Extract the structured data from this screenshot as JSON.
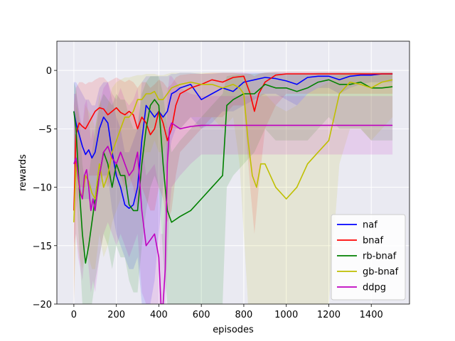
{
  "chart_data": {
    "type": "line",
    "title": "",
    "xlabel": "episodes",
    "ylabel": "rewards",
    "xlim": [
      -80,
      1580
    ],
    "ylim": [
      -20,
      2.5
    ],
    "xticks": [
      0,
      200,
      400,
      600,
      800,
      1000,
      1200,
      1400
    ],
    "yticks": [
      0,
      -5,
      -10,
      -15,
      -20
    ],
    "xtick_labels": [
      "0",
      "200",
      "400",
      "600",
      "800",
      "1000",
      "1200",
      "1400"
    ],
    "ytick_labels": [
      "0",
      "−5",
      "−10",
      "−15",
      "−20"
    ],
    "grid": true,
    "background": "#eaeaf2",
    "legend_position": "lower-right",
    "series": [
      {
        "name": "naf",
        "color": "#0000ff",
        "x": [
          0,
          10,
          25,
          40,
          55,
          70,
          85,
          100,
          120,
          140,
          160,
          180,
          200,
          220,
          240,
          260,
          280,
          300,
          320,
          340,
          360,
          380,
          400,
          420,
          440,
          460,
          480,
          500,
          550,
          600,
          650,
          700,
          750,
          800,
          850,
          900,
          950,
          1000,
          1050,
          1100,
          1150,
          1200,
          1250,
          1300,
          1350,
          1400,
          1450,
          1500
        ],
        "y": [
          -3.5,
          -4.5,
          -5.5,
          -6.5,
          -7.2,
          -6.8,
          -7.5,
          -7,
          -5,
          -4,
          -4.5,
          -7,
          -9,
          -10,
          -11.5,
          -11.8,
          -11.5,
          -10,
          -6,
          -3,
          -3.5,
          -4,
          -3.5,
          -4,
          -3.5,
          -2,
          -1.8,
          -1.5,
          -1.2,
          -2.5,
          -2,
          -1.5,
          -1.8,
          -1,
          -0.8,
          -0.6,
          -0.7,
          -0.9,
          -1.2,
          -0.6,
          -0.5,
          -0.5,
          -0.8,
          -0.5,
          -0.4,
          -0.4,
          -0.3,
          -0.3
        ],
        "band_lower": [
          -8,
          -9,
          -10,
          -11,
          -11,
          -11,
          -12,
          -12,
          -10,
          -9,
          -9,
          -12,
          -14,
          -15,
          -16,
          -17,
          -17,
          -16,
          -20,
          -20,
          -20,
          -18,
          -14,
          -10,
          -8,
          -6,
          -5,
          -5,
          -4,
          -5,
          -4.5,
          -3.5,
          -3.5,
          -3,
          -2.5,
          -2,
          -2,
          -2.5,
          -3,
          -2,
          -1.5,
          -1.5,
          -2,
          -1.5,
          -1.2,
          -1,
          -1,
          -1
        ],
        "band_upper": [
          -1,
          -1,
          -1.5,
          -2,
          -2.5,
          -2.5,
          -3,
          -3,
          -1.5,
          -1,
          -1,
          -2.5,
          -4,
          -5,
          -7,
          -7,
          -6,
          -5,
          -1,
          -0.5,
          -0.5,
          -0.5,
          -0.5,
          -0.5,
          -0.5,
          -0.3,
          -0.3,
          -0.2,
          -0.2,
          -0.3,
          -0.3,
          -0.2,
          -0.2,
          -0.2,
          -0.2,
          -0.2,
          -0.2,
          -0.2,
          -0.2,
          -0.2,
          -0.2,
          -0.2,
          -0.2,
          -0.2,
          -0.2,
          -0.2,
          -0.2,
          -0.2
        ]
      },
      {
        "name": "bnaf",
        "color": "#ff0000",
        "x": [
          0,
          10,
          25,
          40,
          55,
          70,
          85,
          100,
          120,
          140,
          160,
          180,
          200,
          220,
          240,
          260,
          280,
          300,
          320,
          340,
          360,
          380,
          400,
          420,
          440,
          460,
          480,
          500,
          550,
          600,
          650,
          700,
          750,
          800,
          830,
          850,
          870,
          900,
          950,
          1000,
          1050,
          1100,
          1150,
          1200,
          1250,
          1300,
          1350,
          1400,
          1450,
          1500
        ],
        "y": [
          -12,
          -5.5,
          -4.5,
          -4.8,
          -5,
          -4.5,
          -4,
          -3.5,
          -3.2,
          -3.3,
          -3.8,
          -3.5,
          -3.2,
          -3.6,
          -3.8,
          -3.5,
          -3.8,
          -5,
          -4,
          -4.5,
          -5.5,
          -5,
          -3.5,
          -4.5,
          -6,
          -5,
          -3,
          -2,
          -1.5,
          -1.2,
          -0.8,
          -1,
          -0.6,
          -0.5,
          -2,
          -3.5,
          -2,
          -1,
          -0.4,
          -0.3,
          -0.3,
          -0.3,
          -0.3,
          -0.3,
          -0.3,
          -0.3,
          -0.3,
          -0.3,
          -0.3,
          -0.3
        ],
        "band_lower": [
          -20,
          -12,
          -10,
          -10,
          -10,
          -9,
          -9,
          -9,
          -9,
          -9,
          -10,
          -9,
          -9,
          -9,
          -10,
          -9,
          -10,
          -12,
          -10,
          -11,
          -12,
          -12,
          -10,
          -11,
          -13,
          -12,
          -9,
          -7,
          -6,
          -5,
          -4,
          -4,
          -3,
          -3,
          -10,
          -14,
          -10,
          -5,
          -3,
          -2,
          -2,
          -2,
          -2,
          -2,
          -2,
          -2,
          -2,
          -2,
          -2,
          -2
        ],
        "band_upper": [
          -3,
          -1.5,
          -1,
          -1,
          -1.2,
          -1,
          -1,
          -0.8,
          -0.6,
          -0.6,
          -1,
          -0.8,
          -0.6,
          -0.8,
          -1,
          -0.8,
          -1,
          -1.5,
          -1,
          -1,
          -1.5,
          -1.2,
          -0.8,
          -1,
          -1.5,
          -1.2,
          -0.6,
          -0.4,
          -0.3,
          -0.3,
          -0.2,
          -0.2,
          -0.2,
          -0.2,
          -0.3,
          -0.5,
          -0.3,
          -0.2,
          -0.1,
          -0.1,
          -0.1,
          -0.1,
          -0.1,
          -0.1,
          -0.1,
          -0.1,
          -0.1,
          -0.1,
          -0.1,
          -0.1
        ]
      },
      {
        "name": "rb-bnaf",
        "color": "#008000",
        "x": [
          0,
          10,
          25,
          40,
          55,
          70,
          85,
          100,
          120,
          140,
          160,
          180,
          200,
          220,
          240,
          260,
          280,
          300,
          320,
          340,
          360,
          380,
          400,
          420,
          440,
          460,
          500,
          550,
          600,
          650,
          700,
          720,
          750,
          800,
          850,
          900,
          950,
          1000,
          1050,
          1100,
          1150,
          1200,
          1250,
          1300,
          1350,
          1400,
          1450,
          1500
        ],
        "y": [
          -3.5,
          -5,
          -10,
          -14,
          -16.5,
          -15,
          -13,
          -11,
          -9,
          -7,
          -8,
          -10,
          -8,
          -9,
          -9,
          -11.5,
          -12,
          -12,
          -8,
          -5,
          -3,
          -2.5,
          -3,
          -8,
          -12,
          -13,
          -12.5,
          -12,
          -11,
          -10,
          -9,
          -3,
          -2.5,
          -2,
          -2,
          -1.2,
          -1.5,
          -1.5,
          -1.8,
          -1.5,
          -1,
          -0.8,
          -1.2,
          -1.2,
          -1,
          -1.5,
          -1.5,
          -1.4
        ],
        "band_lower": [
          -8,
          -10,
          -15,
          -20,
          -20,
          -20,
          -20,
          -18,
          -16,
          -14,
          -15,
          -17,
          -15,
          -16,
          -16,
          -18,
          -19,
          -19,
          -15,
          -12,
          -10,
          -9,
          -10,
          -16,
          -20,
          -20,
          -20,
          -20,
          -20,
          -20,
          -20,
          -10,
          -9,
          -8,
          -7,
          -5,
          -6,
          -6,
          -6,
          -6,
          -5,
          -4,
          -5,
          -5,
          -5,
          -6,
          -6,
          -6
        ],
        "band_upper": [
          -1,
          -1.5,
          -4,
          -8,
          -10,
          -9,
          -7,
          -5,
          -3,
          -2,
          -2.5,
          -3,
          -2,
          -2.5,
          -2.5,
          -4,
          -5,
          -5,
          -2,
          -1,
          -0.5,
          -0.5,
          -0.5,
          -2,
          -5,
          -7,
          -6,
          -5,
          -4,
          -3,
          -2,
          -0.5,
          -0.4,
          -0.3,
          -0.3,
          -0.2,
          -0.2,
          -0.3,
          -0.3,
          -0.3,
          -0.2,
          -0.2,
          -0.2,
          -0.2,
          -0.2,
          -0.2,
          -0.2,
          -0.2
        ]
      },
      {
        "name": "gb-bnaf",
        "color": "#bfbf00",
        "x": [
          0,
          10,
          25,
          40,
          55,
          70,
          85,
          100,
          120,
          140,
          160,
          180,
          200,
          220,
          240,
          260,
          280,
          300,
          320,
          340,
          360,
          380,
          400,
          420,
          440,
          460,
          500,
          550,
          600,
          650,
          700,
          750,
          780,
          800,
          820,
          840,
          860,
          880,
          900,
          950,
          1000,
          1050,
          1100,
          1150,
          1200,
          1250,
          1300,
          1350,
          1400,
          1450,
          1500
        ],
        "y": [
          -13,
          -8,
          -10,
          -11,
          -9,
          -9.5,
          -10.5,
          -11,
          -8,
          -10,
          -9,
          -7,
          -6,
          -5,
          -4,
          -4,
          -3.5,
          -2.5,
          -2.5,
          -2,
          -2,
          -1.8,
          -2.5,
          -2.5,
          -2,
          -1.5,
          -1.2,
          -1,
          -1.2,
          -1.2,
          -1.5,
          -1.2,
          -1.5,
          -2,
          -6,
          -9,
          -10,
          -8,
          -8,
          -10,
          -11,
          -10,
          -8,
          -7,
          -6,
          -2,
          -1,
          -1.2,
          -1.5,
          -1,
          -0.8
        ],
        "band_lower": [
          -20,
          -14,
          -16,
          -17,
          -15,
          -16,
          -17,
          -17,
          -14,
          -16,
          -15,
          -13,
          -12,
          -11,
          -10,
          -10,
          -9,
          -8,
          -8,
          -7,
          -7,
          -6,
          -7,
          -7,
          -6,
          -5,
          -5,
          -4,
          -4,
          -4,
          -5,
          -4,
          -8,
          -14,
          -20,
          -20,
          -20,
          -20,
          -20,
          -20,
          -20,
          -20,
          -20,
          -20,
          -20,
          -8,
          -5,
          -5,
          -6,
          -5,
          -4
        ],
        "band_upper": [
          -6,
          -3,
          -4,
          -5,
          -3,
          -3.5,
          -4,
          -5,
          -2,
          -4,
          -3,
          -1.5,
          -1,
          -0.8,
          -0.6,
          -0.6,
          -0.5,
          -0.4,
          -0.4,
          -0.3,
          -0.3,
          -0.3,
          -0.4,
          -0.4,
          -0.3,
          -0.2,
          -0.2,
          -0.2,
          -0.2,
          -0.2,
          -0.2,
          -0.2,
          -0.3,
          -0.4,
          -1,
          -2,
          -3,
          -2,
          -2,
          -3,
          -3.5,
          -3,
          -2,
          -1.5,
          -1,
          -0.4,
          -0.2,
          -0.2,
          -0.3,
          -0.2,
          -0.2
        ]
      },
      {
        "name": "ddpg",
        "color": "#bf00bf",
        "x": [
          0,
          10,
          20,
          30,
          40,
          50,
          60,
          70,
          80,
          90,
          100,
          120,
          140,
          160,
          180,
          200,
          220,
          240,
          260,
          280,
          300,
          320,
          340,
          360,
          380,
          400,
          410,
          420,
          430,
          440,
          450,
          460,
          500,
          550,
          600,
          700,
          800,
          900,
          1000,
          1100,
          1200,
          1300,
          1400,
          1500
        ],
        "y": [
          -8,
          -7.5,
          -9,
          -10.5,
          -11,
          -9,
          -8.5,
          -10,
          -12,
          -11,
          -12,
          -9,
          -7,
          -6.5,
          -7.5,
          -8,
          -7,
          -8,
          -9,
          -8.5,
          -7,
          -12,
          -15,
          -14.5,
          -14,
          -16,
          -20,
          -20,
          -17,
          -8,
          -5,
          -4.5,
          -5,
          -4.8,
          -4.7,
          -4.7,
          -4.7,
          -4.7,
          -4.7,
          -4.7,
          -4.7,
          -4.7,
          -4.7,
          -4.7
        ],
        "band_lower": [
          -15,
          -14,
          -16,
          -17,
          -18,
          -16,
          -15,
          -17,
          -19,
          -18,
          -19,
          -16,
          -14,
          -13,
          -14,
          -15,
          -14,
          -15,
          -16,
          -15,
          -14,
          -19,
          -20,
          -20,
          -20,
          -20,
          -20,
          -20,
          -20,
          -16,
          -12,
          -10,
          -9,
          -8,
          -7.2,
          -7.2,
          -7.2,
          -7.2,
          -7.2,
          -7.2,
          -7.2,
          -7.2,
          -7.2,
          -7.2
        ],
        "band_upper": [
          -2,
          -2,
          -3,
          -4,
          -5,
          -3,
          -2.5,
          -4,
          -6,
          -5,
          -6,
          -3,
          -1.5,
          -1,
          -2,
          -2.5,
          -1.5,
          -2.5,
          -3,
          -2.5,
          -1.5,
          -6,
          -9,
          -8.5,
          -8,
          -10,
          -14,
          -14,
          -11,
          -2,
          -0.5,
          -0.5,
          -1.5,
          -2,
          -2.2,
          -2.2,
          -2.2,
          -2.2,
          -2.2,
          -2.2,
          -2.2,
          -2.2,
          -2.2,
          -2.2
        ]
      }
    ]
  }
}
